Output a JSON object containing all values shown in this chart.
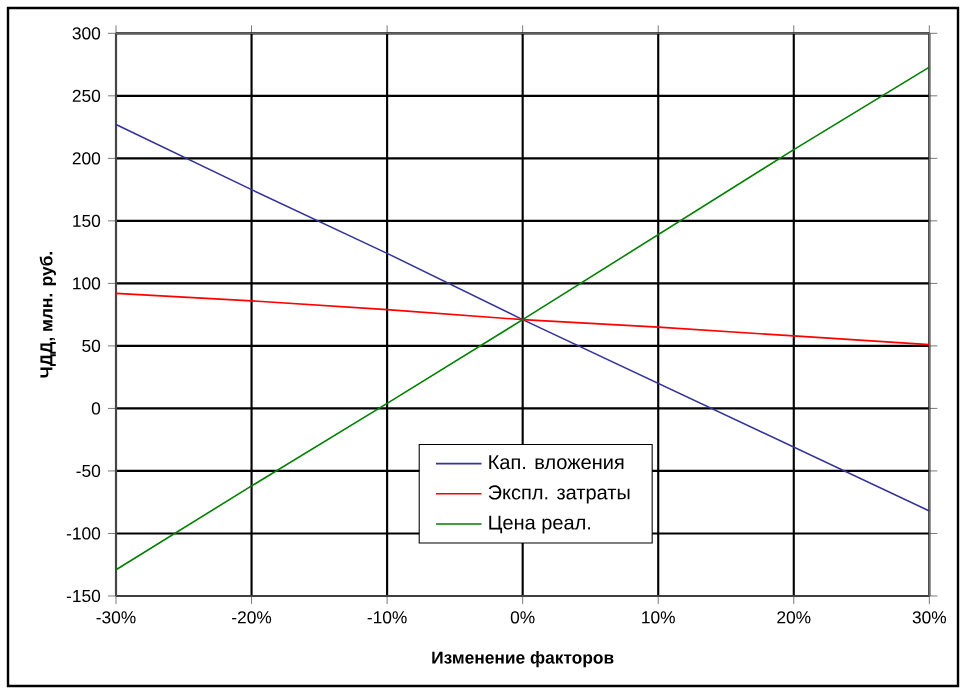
{
  "chart_data": {
    "type": "line",
    "xlabel": "Изменение факторов",
    "ylabel": "ЧДД, млн. руб.",
    "x": [
      -30,
      -20,
      -10,
      0,
      10,
      20,
      30
    ],
    "series": [
      {
        "name": "Кап. вложения",
        "color": "#333399",
        "values": [
          227,
          175,
          124,
          71,
          20,
          -31,
          -82
        ]
      },
      {
        "name": "Экспл. затраты",
        "color": "#ff0000",
        "values": [
          92,
          86,
          79,
          71,
          65,
          58,
          51
        ]
      },
      {
        "name": "Цена реал.",
        "color": "#008000",
        "values": [
          -129,
          -62,
          4,
          71,
          139,
          207,
          273
        ]
      }
    ],
    "xlim": [
      -30,
      30
    ],
    "xticks": [
      {
        "value": -30,
        "label": "-30%"
      },
      {
        "value": -20,
        "label": "-20%"
      },
      {
        "value": -10,
        "label": "-10%"
      },
      {
        "value": 0,
        "label": "0%"
      },
      {
        "value": 10,
        "label": "10%"
      },
      {
        "value": 20,
        "label": "20%"
      },
      {
        "value": 30,
        "label": "30%"
      }
    ],
    "ylim": [
      -150,
      300
    ],
    "yticks": [
      -150,
      -100,
      -50,
      0,
      50,
      100,
      150,
      200,
      250,
      300
    ],
    "grid": true,
    "legend": "bottom",
    "marker": "none",
    "line_style": "solid"
  }
}
